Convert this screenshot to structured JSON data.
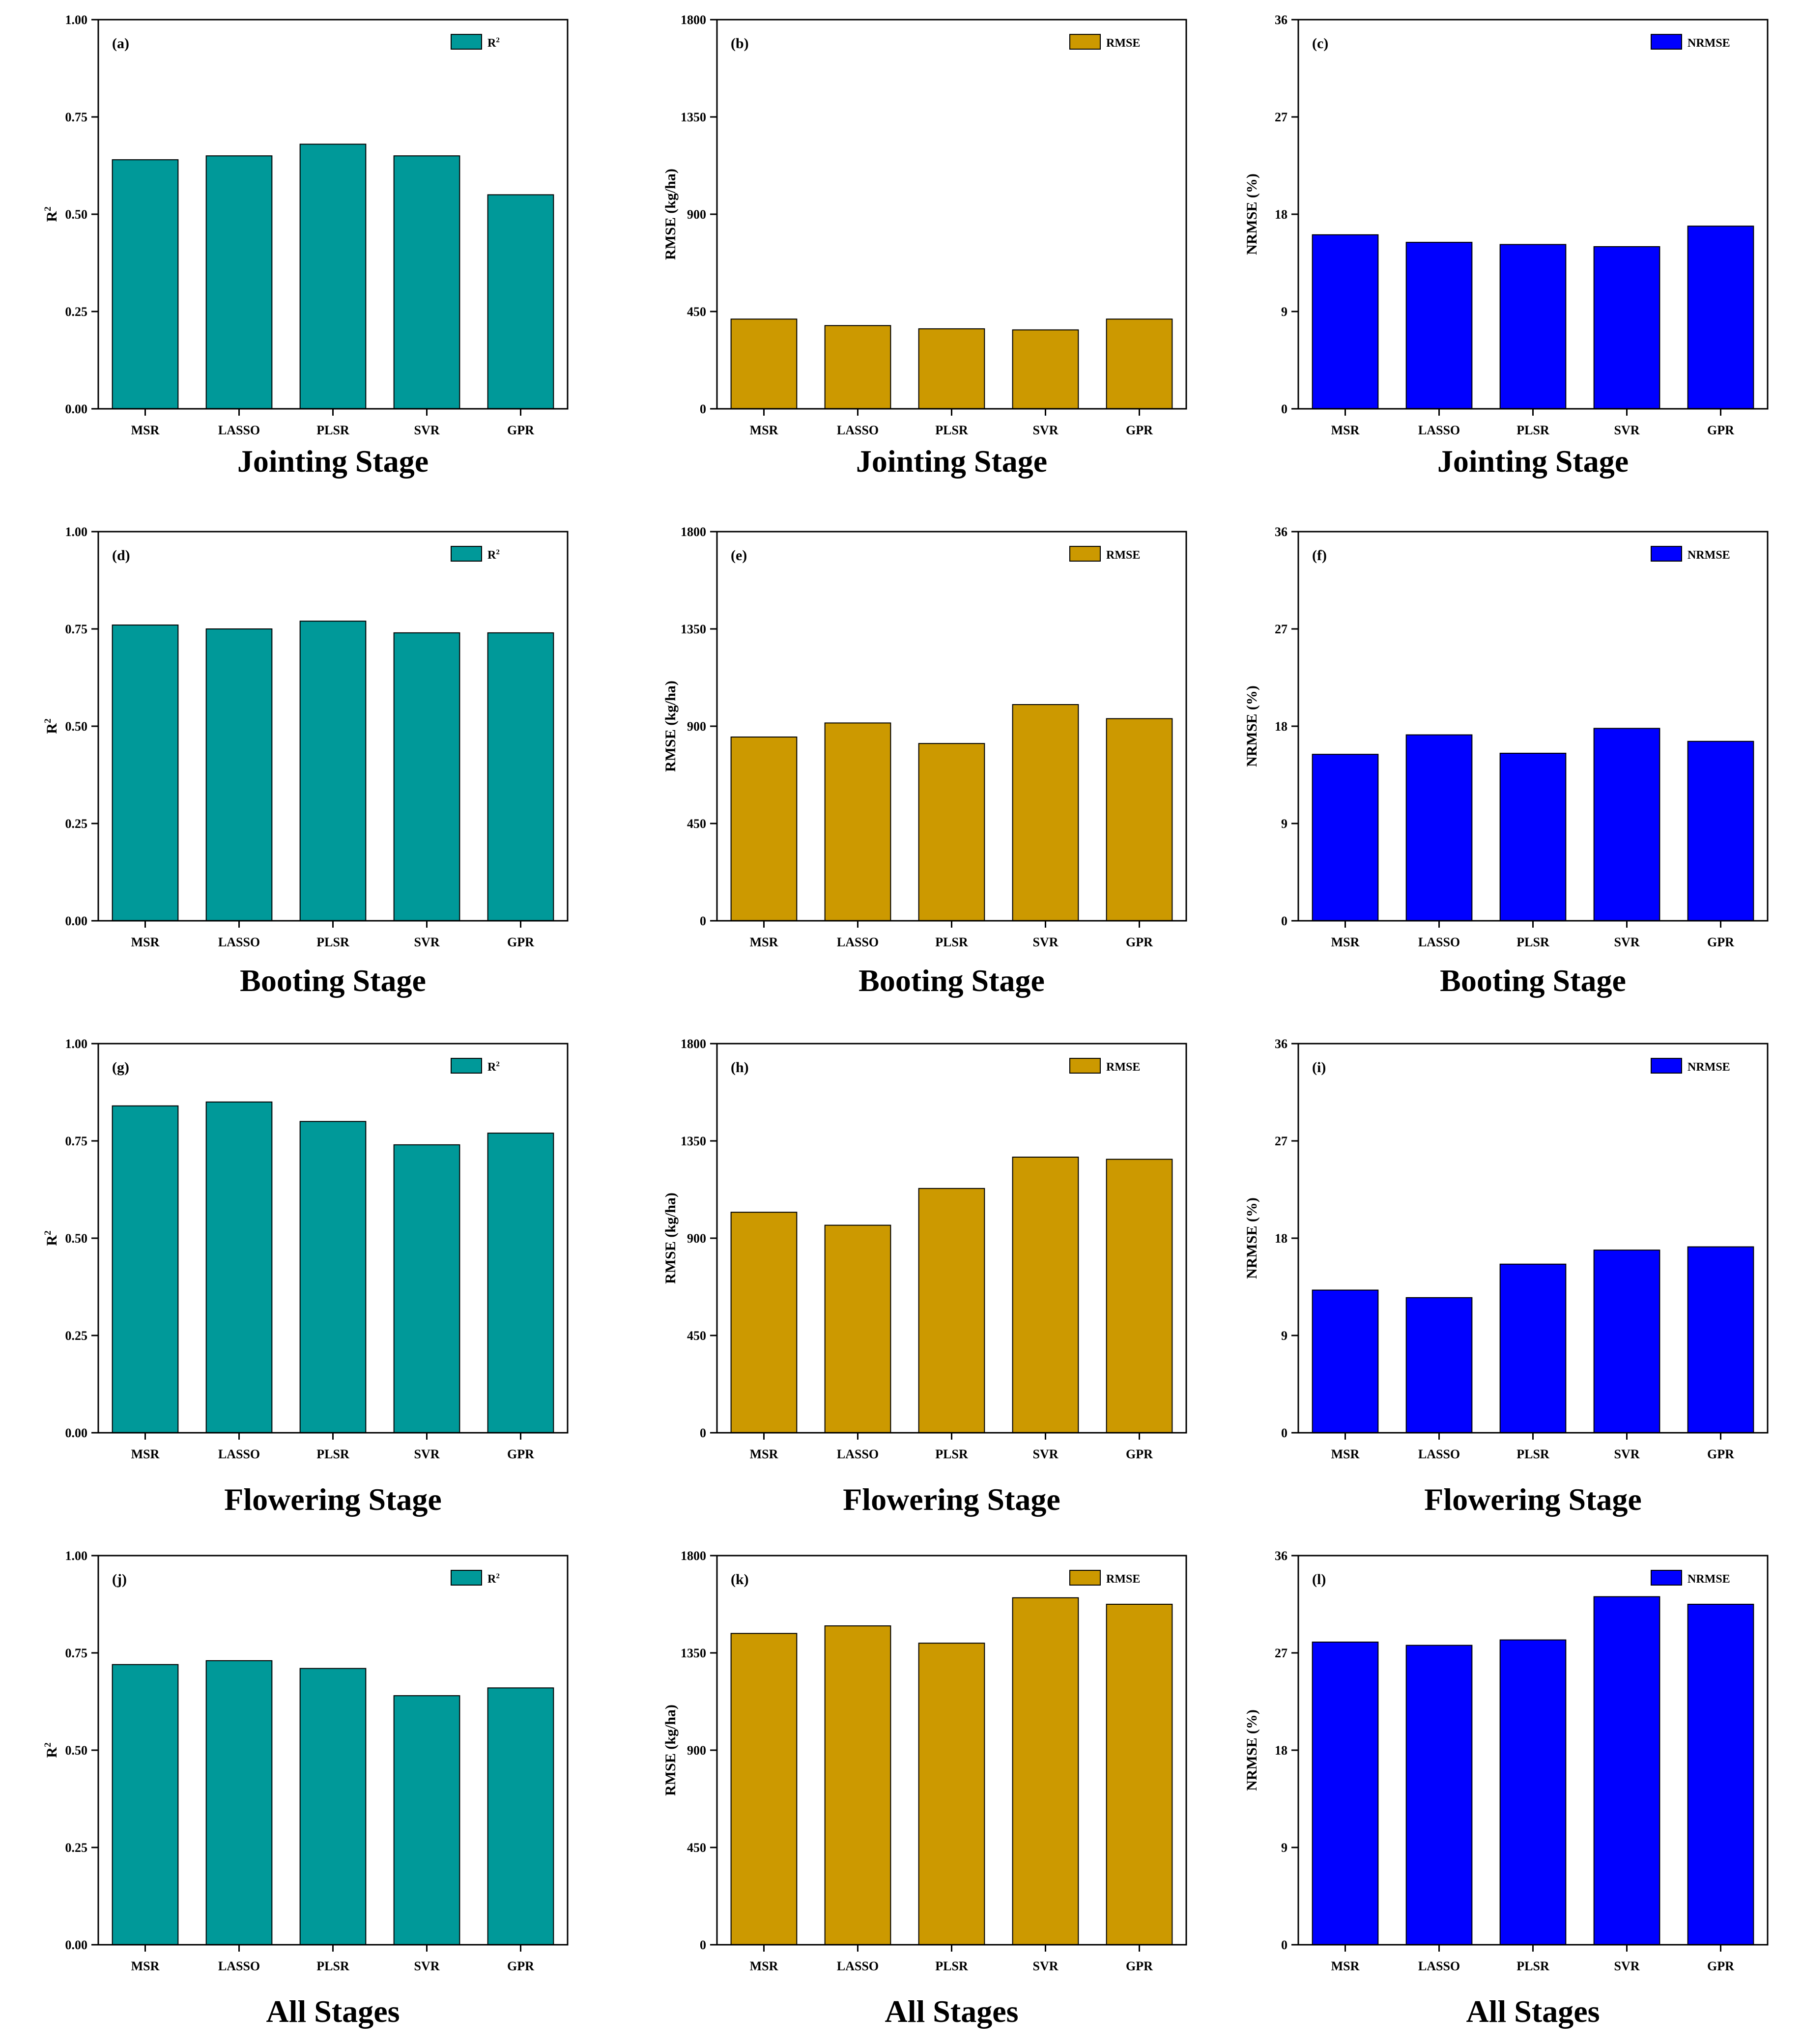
{
  "figure": {
    "metrics": [
      {
        "key": "r2",
        "ylabel": "R",
        "ylabel_sup": "2",
        "legend": "R",
        "legend_sup": "2",
        "color": "#009999",
        "ylim": [
          0,
          1
        ],
        "ticks": [
          "0.00",
          "0.25",
          "0.50",
          "0.75",
          "1.00"
        ]
      },
      {
        "key": "rmse",
        "ylabel": "RMSE (kg/ha)",
        "ylabel_sup": "",
        "legend": "RMSE",
        "legend_sup": "",
        "color": "#CC9900",
        "ylim": [
          0,
          1800
        ],
        "ticks": [
          "0",
          "450",
          "900",
          "1350",
          "1800"
        ]
      },
      {
        "key": "nrmse",
        "ylabel": "NRMSE (%)",
        "ylabel_sup": "",
        "legend": "NRMSE",
        "legend_sup": "",
        "color": "#0000FF",
        "ylim": [
          0,
          36
        ],
        "ticks": [
          "0",
          "9",
          "18",
          "27",
          "36"
        ]
      }
    ]
  },
  "chart_data": [
    {
      "type": "bar",
      "panel": "(a)",
      "title": "Jointing Stage",
      "metric": "r2",
      "categories": [
        "MSR",
        "LASSO",
        "PLSR",
        "SVR",
        "GPR"
      ],
      "values": [
        0.64,
        0.65,
        0.68,
        0.65,
        0.55
      ]
    },
    {
      "type": "bar",
      "panel": "(b)",
      "title": "Jointing Stage",
      "metric": "rmse",
      "categories": [
        "MSR",
        "LASSO",
        "PLSR",
        "SVR",
        "GPR"
      ],
      "values": [
        415,
        385,
        370,
        365,
        415
      ]
    },
    {
      "type": "bar",
      "panel": "(c)",
      "title": "Jointing Stage",
      "metric": "nrmse",
      "categories": [
        "MSR",
        "LASSO",
        "PLSR",
        "SVR",
        "GPR"
      ],
      "values": [
        16.1,
        15.4,
        15.2,
        15.0,
        16.9
      ]
    },
    {
      "type": "bar",
      "panel": "(d)",
      "title": "Booting Stage",
      "metric": "r2",
      "categories": [
        "MSR",
        "LASSO",
        "PLSR",
        "SVR",
        "GPR"
      ],
      "values": [
        0.76,
        0.75,
        0.77,
        0.74,
        0.74
      ]
    },
    {
      "type": "bar",
      "panel": "(e)",
      "title": "Booting Stage",
      "metric": "rmse",
      "categories": [
        "MSR",
        "LASSO",
        "PLSR",
        "SVR",
        "GPR"
      ],
      "values": [
        850,
        915,
        820,
        1000,
        935
      ]
    },
    {
      "type": "bar",
      "panel": "(f)",
      "title": "Booting Stage",
      "metric": "nrmse",
      "categories": [
        "MSR",
        "LASSO",
        "PLSR",
        "SVR",
        "GPR"
      ],
      "values": [
        15.4,
        17.2,
        15.5,
        17.8,
        16.6
      ]
    },
    {
      "type": "bar",
      "panel": "(g)",
      "title": "Flowering Stage",
      "metric": "r2",
      "categories": [
        "MSR",
        "LASSO",
        "PLSR",
        "SVR",
        "GPR"
      ],
      "values": [
        0.84,
        0.85,
        0.8,
        0.74,
        0.77
      ]
    },
    {
      "type": "bar",
      "panel": "(h)",
      "title": "Flowering Stage",
      "metric": "rmse",
      "categories": [
        "MSR",
        "LASSO",
        "PLSR",
        "SVR",
        "GPR"
      ],
      "values": [
        1020,
        960,
        1130,
        1275,
        1265
      ]
    },
    {
      "type": "bar",
      "panel": "(i)",
      "title": "Flowering Stage",
      "metric": "nrmse",
      "categories": [
        "MSR",
        "LASSO",
        "PLSR",
        "SVR",
        "GPR"
      ],
      "values": [
        13.2,
        12.5,
        15.6,
        16.9,
        17.2
      ]
    },
    {
      "type": "bar",
      "panel": "(j)",
      "title": "All Stages",
      "metric": "r2",
      "categories": [
        "MSR",
        "LASSO",
        "PLSR",
        "SVR",
        "GPR"
      ],
      "values": [
        0.72,
        0.73,
        0.71,
        0.64,
        0.66
      ]
    },
    {
      "type": "bar",
      "panel": "(k)",
      "title": "All Stages",
      "metric": "rmse",
      "categories": [
        "MSR",
        "LASSO",
        "PLSR",
        "SVR",
        "GPR"
      ],
      "values": [
        1440,
        1475,
        1395,
        1605,
        1575
      ]
    },
    {
      "type": "bar",
      "panel": "(l)",
      "title": "All Stages",
      "metric": "nrmse",
      "categories": [
        "MSR",
        "LASSO",
        "PLSR",
        "SVR",
        "GPR"
      ],
      "values": [
        28.0,
        27.7,
        28.2,
        32.2,
        31.5
      ]
    }
  ]
}
